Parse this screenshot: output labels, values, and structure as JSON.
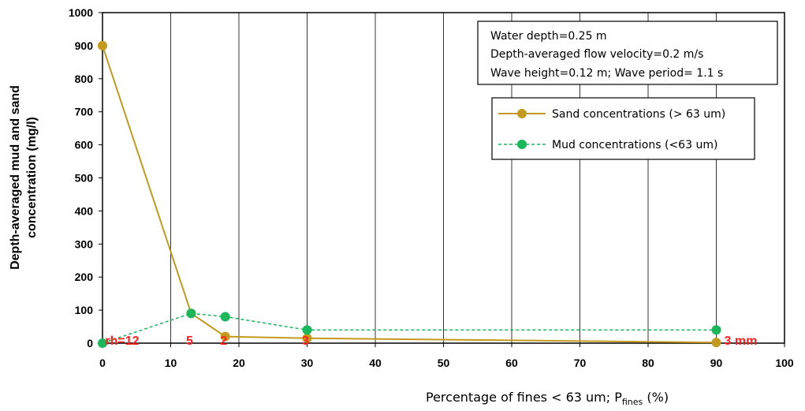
{
  "chart_data": {
    "type": "line",
    "xlabel": "Percentage of fines < 63 um;  P",
    "xlabel_sub": "fines",
    "xlabel_tail": " (%)",
    "ylabel_line1": "Depth-averaged mud and sand",
    "ylabel_line2": "concentration (mg/l)",
    "xlim": [
      0,
      100
    ],
    "ylim": [
      0,
      1000
    ],
    "x_ticks": [
      0,
      10,
      20,
      30,
      40,
      50,
      60,
      70,
      80,
      90,
      100
    ],
    "y_ticks": [
      0,
      100,
      200,
      300,
      400,
      500,
      600,
      700,
      800,
      900,
      1000
    ],
    "grid": "vertical",
    "series": [
      {
        "name": "Sand concentrations (> 63 um)",
        "color": "#c49a1e",
        "dash": "solid",
        "points": [
          [
            0,
            900
          ],
          [
            13,
            90
          ],
          [
            18,
            20
          ],
          [
            30,
            15
          ],
          [
            90,
            2
          ]
        ]
      },
      {
        "name": "Mud concentrations (<63 um)",
        "color": "#1ab85a",
        "dash": "dashed",
        "points": [
          [
            0,
            0
          ],
          [
            13,
            90
          ],
          [
            18,
            80
          ],
          [
            30,
            40
          ],
          [
            90,
            40
          ]
        ]
      }
    ],
    "notes": [
      "Water depth=0.25 m",
      "Depth-averaged flow velocity=0.2 m/s",
      "Wave height=0.12 m; Wave period= 1.1 s"
    ],
    "annotations": [
      {
        "text": "rh=12",
        "x": 0,
        "y": 40
      },
      {
        "text": "5",
        "x": 13,
        "y": 40
      },
      {
        "text": "2",
        "x": 18,
        "y": 40
      },
      {
        "text": "3",
        "x": 30,
        "y": 40
      },
      {
        "text": "3 mm",
        "x": 90,
        "y": 40
      }
    ],
    "legend_position": "top-right"
  }
}
